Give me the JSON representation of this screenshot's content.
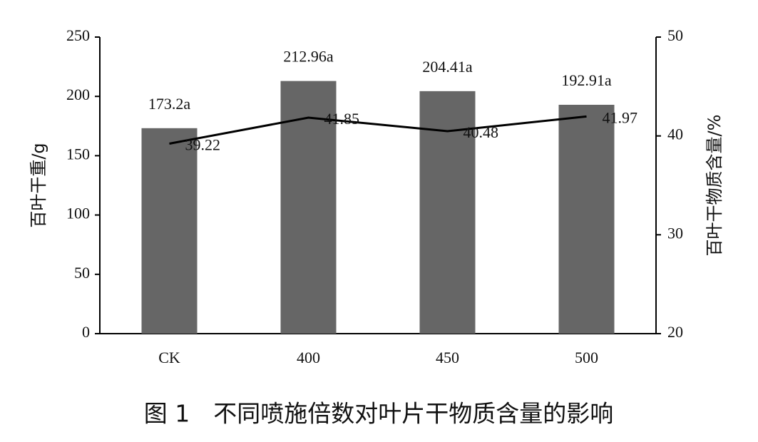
{
  "chart_data": {
    "type": "bar",
    "caption": "图 1　不同喷施倍数对叶片干物质含量的影响",
    "y_label": "百叶干重/g",
    "y2_label": "百叶干物质含量/%",
    "categories": [
      "CK",
      "400",
      "450",
      "500"
    ],
    "series": [
      {
        "name": "百叶干重",
        "type": "bar",
        "color": "#666666",
        "values": [
          173.2,
          212.96,
          204.41,
          192.91
        ],
        "value_labels": [
          "173.2a",
          "212.96a",
          "204.41a",
          "192.91a"
        ]
      },
      {
        "name": "百叶干物质含量",
        "type": "line",
        "axis": "y2",
        "color": "#000000",
        "values": [
          39.22,
          41.85,
          40.48,
          41.97
        ]
      }
    ],
    "ylim": [
      0,
      250
    ],
    "yticks": [
      0,
      50,
      100,
      150,
      200,
      250
    ],
    "y2lim": [
      20,
      50
    ],
    "y2ticks": [
      20,
      30,
      40,
      50
    ]
  }
}
